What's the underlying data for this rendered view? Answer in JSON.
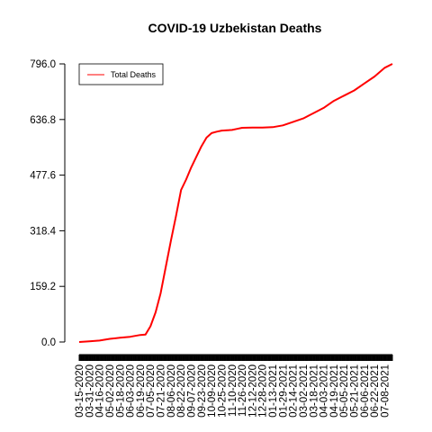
{
  "chart_data": {
    "type": "line",
    "title": "COVID-19 Uzbekistan Deaths",
    "xlabel": "",
    "ylabel": "",
    "legend": {
      "position": "top-left",
      "entries": [
        "Total Deaths"
      ]
    },
    "yticks": [
      "0.0",
      "159.2",
      "318.4",
      "477.6",
      "636.8",
      "796.0"
    ],
    "ylim": [
      0,
      796
    ],
    "xticks": [
      "03-15-2020",
      "03-31-2020",
      "04-16-2020",
      "05-02-2020",
      "05-18-2020",
      "06-03-2020",
      "06-19-2020",
      "07-05-2020",
      "07-21-2020",
      "08-06-2020",
      "08-22-2020",
      "09-07-2020",
      "09-23-2020",
      "10-09-2020",
      "10-25-2020",
      "11-10-2020",
      "11-26-2020",
      "12-12-2020",
      "12-28-2020",
      "01-13-2021",
      "01-29-2021",
      "02-14-2021",
      "03-02-2021",
      "03-18-2021",
      "04-03-2021",
      "04-19-2021",
      "05-05-2021",
      "05-21-2021",
      "06-06-2021",
      "06-22-2021",
      "07-08-2021"
    ],
    "series": [
      {
        "name": "Total Deaths",
        "color": "#ff0000",
        "x": [
          "03-15-2020",
          "03-31-2020",
          "04-16-2020",
          "05-02-2020",
          "05-18-2020",
          "06-03-2020",
          "06-19-2020",
          "06-27-2020",
          "07-05-2020",
          "07-13-2020",
          "07-21-2020",
          "07-29-2020",
          "08-06-2020",
          "08-14-2020",
          "08-22-2020",
          "08-30-2020",
          "09-07-2020",
          "09-15-2020",
          "09-23-2020",
          "10-01-2020",
          "10-09-2020",
          "10-17-2020",
          "10-25-2020",
          "11-02-2020",
          "11-10-2020",
          "11-18-2020",
          "11-26-2020",
          "12-12-2020",
          "12-28-2020",
          "01-13-2021",
          "01-29-2021",
          "02-14-2021",
          "03-02-2021",
          "03-18-2021",
          "04-03-2021",
          "04-19-2021",
          "05-05-2021",
          "05-21-2021",
          "06-06-2021",
          "06-22-2021",
          "07-08-2021",
          "07-20-2021"
        ],
        "y": [
          0,
          2,
          4,
          9,
          12,
          15,
          20,
          21,
          45,
          85,
          140,
          215,
          290,
          360,
          435,
          465,
          500,
          530,
          560,
          585,
          598,
          602,
          605,
          606,
          607,
          610,
          613,
          614,
          614,
          615,
          620,
          630,
          640,
          655,
          670,
          690,
          705,
          720,
          740,
          760,
          785,
          796
        ]
      }
    ],
    "grid": false
  }
}
